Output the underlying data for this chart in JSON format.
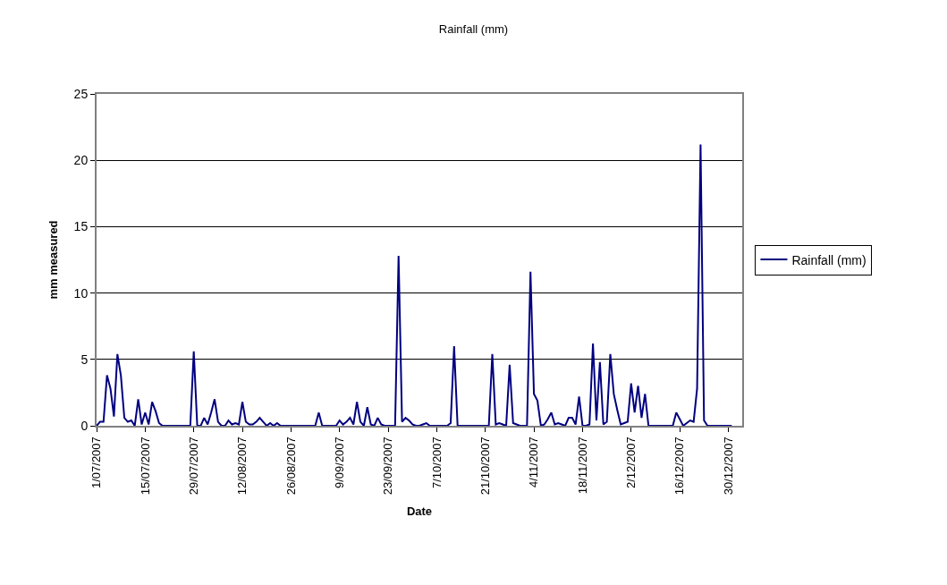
{
  "chart_data": {
    "type": "line",
    "title": "Rainfall (mm)",
    "xlabel": "Date",
    "ylabel": "mm measured",
    "x": [
      "2007-07-01",
      "2007-07-02",
      "2007-07-03",
      "2007-07-04",
      "2007-07-05",
      "2007-07-06",
      "2007-07-07",
      "2007-07-08",
      "2007-07-09",
      "2007-07-10",
      "2007-07-11",
      "2007-07-12",
      "2007-07-13",
      "2007-07-14",
      "2007-07-15",
      "2007-07-16",
      "2007-07-17",
      "2007-07-18",
      "2007-07-19",
      "2007-07-20",
      "2007-07-28",
      "2007-07-29",
      "2007-07-30",
      "2007-07-31",
      "2007-08-01",
      "2007-08-02",
      "2007-08-03",
      "2007-08-04",
      "2007-08-05",
      "2007-08-06",
      "2007-08-07",
      "2007-08-08",
      "2007-08-09",
      "2007-08-10",
      "2007-08-11",
      "2007-08-12",
      "2007-08-13",
      "2007-08-14",
      "2007-08-15",
      "2007-08-16",
      "2007-08-17",
      "2007-08-18",
      "2007-08-19",
      "2007-08-20",
      "2007-08-21",
      "2007-08-22",
      "2007-08-23",
      "2007-09-02",
      "2007-09-03",
      "2007-09-04",
      "2007-09-08",
      "2007-09-09",
      "2007-09-10",
      "2007-09-11",
      "2007-09-12",
      "2007-09-13",
      "2007-09-14",
      "2007-09-15",
      "2007-09-16",
      "2007-09-17",
      "2007-09-18",
      "2007-09-19",
      "2007-09-20",
      "2007-09-21",
      "2007-09-22",
      "2007-09-25",
      "2007-09-26",
      "2007-09-27",
      "2007-09-28",
      "2007-09-29",
      "2007-09-30",
      "2007-10-01",
      "2007-10-02",
      "2007-10-03",
      "2007-10-04",
      "2007-10-05",
      "2007-10-10",
      "2007-10-11",
      "2007-10-12",
      "2007-10-13",
      "2007-10-22",
      "2007-10-23",
      "2007-10-24",
      "2007-10-25",
      "2007-10-26",
      "2007-10-27",
      "2007-10-28",
      "2007-10-29",
      "2007-10-30",
      "2007-10-31",
      "2007-11-02",
      "2007-11-03",
      "2007-11-04",
      "2007-11-05",
      "2007-11-06",
      "2007-11-07",
      "2007-11-08",
      "2007-11-09",
      "2007-11-10",
      "2007-11-11",
      "2007-11-12",
      "2007-11-13",
      "2007-11-14",
      "2007-11-15",
      "2007-11-16",
      "2007-11-17",
      "2007-11-18",
      "2007-11-19",
      "2007-11-20",
      "2007-11-21",
      "2007-11-22",
      "2007-11-23",
      "2007-11-24",
      "2007-11-25",
      "2007-11-26",
      "2007-11-27",
      "2007-11-28",
      "2007-11-29",
      "2007-11-30",
      "2007-12-01",
      "2007-12-02",
      "2007-12-03",
      "2007-12-04",
      "2007-12-05",
      "2007-12-06",
      "2007-12-07",
      "2007-12-14",
      "2007-12-15",
      "2007-12-16",
      "2007-12-17",
      "2007-12-18",
      "2007-12-19",
      "2007-12-20",
      "2007-12-21",
      "2007-12-22",
      "2007-12-23",
      "2007-12-24",
      "2007-12-31"
    ],
    "series": [
      {
        "name": "Rainfall (mm)",
        "color": "#000080",
        "values": [
          0,
          0.3,
          0.3,
          3.8,
          2.8,
          0.7,
          5.4,
          3.8,
          0.6,
          0.3,
          0.4,
          0,
          2.0,
          0.1,
          1.0,
          0.1,
          1.8,
          1.1,
          0.2,
          0,
          0,
          5.6,
          0,
          0,
          0.6,
          0.1,
          1.0,
          2.0,
          0.3,
          0,
          0,
          0.4,
          0.1,
          0.2,
          0.1,
          1.8,
          0.3,
          0.1,
          0.1,
          0.3,
          0.6,
          0.3,
          0,
          0.2,
          0,
          0.2,
          0,
          0,
          1.0,
          0,
          0,
          0.4,
          0.1,
          0.3,
          0.6,
          0.1,
          1.8,
          0.3,
          0,
          1.4,
          0.1,
          0,
          0.6,
          0.1,
          0,
          0,
          12.8,
          0.3,
          0.6,
          0.4,
          0.1,
          0,
          0,
          0.1,
          0.2,
          0,
          0,
          0.2,
          6.0,
          0,
          0,
          5.4,
          0.1,
          0.2,
          0.1,
          0,
          4.6,
          0.2,
          0.1,
          0,
          0,
          11.6,
          2.4,
          1.9,
          0,
          0.1,
          0.5,
          1.0,
          0.1,
          0.2,
          0.1,
          0,
          0.6,
          0.6,
          0.1,
          2.2,
          0,
          0,
          0.1,
          6.2,
          0.4,
          4.8,
          0.1,
          0.3,
          5.4,
          2.4,
          1.2,
          0.1,
          0.2,
          0.3,
          3.2,
          1.0,
          3.0,
          0.6,
          2.4,
          0,
          0,
          1.0,
          0.5,
          0,
          0.2,
          0.4,
          0.3,
          2.8,
          21.2,
          0.4,
          0,
          0
        ]
      }
    ],
    "xlim": [
      "2007-07-01",
      "2008-01-03"
    ],
    "xticks": [
      {
        "value": "2007-07-01",
        "label": "1/07/2007"
      },
      {
        "value": "2007-07-15",
        "label": "15/07/2007"
      },
      {
        "value": "2007-07-29",
        "label": "29/07/2007"
      },
      {
        "value": "2007-08-12",
        "label": "12/08/2007"
      },
      {
        "value": "2007-08-26",
        "label": "26/08/2007"
      },
      {
        "value": "2007-09-09",
        "label": "9/09/2007"
      },
      {
        "value": "2007-09-23",
        "label": "23/09/2007"
      },
      {
        "value": "2007-10-07",
        "label": "7/10/2007"
      },
      {
        "value": "2007-10-21",
        "label": "21/10/2007"
      },
      {
        "value": "2007-11-04",
        "label": "4/11/2007"
      },
      {
        "value": "2007-11-18",
        "label": "18/11/2007"
      },
      {
        "value": "2007-12-02",
        "label": "2/12/2007"
      },
      {
        "value": "2007-12-16",
        "label": "16/12/2007"
      },
      {
        "value": "2007-12-30",
        "label": "30/12/2007"
      }
    ],
    "ylim": [
      0,
      25
    ],
    "yticks": [
      0,
      5,
      10,
      15,
      20,
      25
    ],
    "grid": "y",
    "legend": "right",
    "marker": "none",
    "line_style": "solid"
  }
}
